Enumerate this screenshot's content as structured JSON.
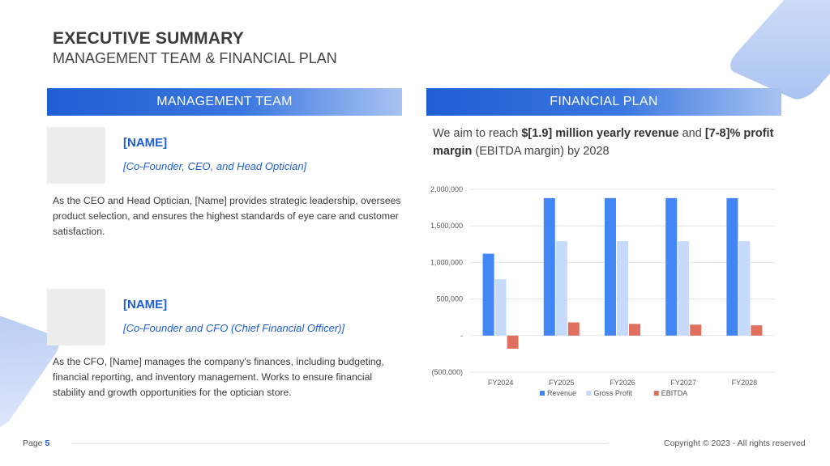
{
  "header": {
    "title": "EXECUTIVE SUMMARY",
    "subtitle": "MANAGEMENT TEAM & FINANCIAL PLAN"
  },
  "management": {
    "heading": "MANAGEMENT TEAM",
    "members": [
      {
        "name": "[NAME]",
        "role": "[Co-Founder, CEO, and Head Optician]",
        "description": "As the CEO and Head Optician, [Name] provides strategic leadership, oversees product selection, and ensures the highest standards of eye care and customer satisfaction."
      },
      {
        "name": "[NAME]",
        "role": "[Co-Founder and CFO (Chief Financial Officer)]",
        "description": "As the CFO, [Name] manages the company's finances, including budgeting, financial reporting, and inventory management. Works to ensure financial stability and growth opportunities for the optician store."
      }
    ]
  },
  "financial": {
    "heading": "FINANCIAL PLAN",
    "text_parts": [
      "We aim to reach ",
      "$[1.9] million yearly revenue",
      " and ",
      "[7-8]% profit margin",
      " (EBITDA margin) by 2028"
    ]
  },
  "chart_data": {
    "type": "bar",
    "categories": [
      "FY2024",
      "FY2025",
      "FY2026",
      "FY2027",
      "FY2028"
    ],
    "series": [
      {
        "name": "Revenue",
        "color": "#4285f4",
        "values": [
          1120000,
          1880000,
          1880000,
          1880000,
          1880000
        ]
      },
      {
        "name": "Gross Profit",
        "color": "#c6dafc",
        "values": [
          770000,
          1290000,
          1290000,
          1290000,
          1290000
        ]
      },
      {
        "name": "EBITDA",
        "color": "#e06f5e",
        "values": [
          -180000,
          180000,
          160000,
          150000,
          140000
        ]
      }
    ],
    "ylim": [
      -500000,
      2000000
    ],
    "yticks": [
      -500000,
      0,
      500000,
      1000000,
      1500000,
      2000000
    ],
    "ytick_labels": [
      "(500,000)",
      "-",
      "500,000",
      "1,000,000",
      "1,500,000",
      "2,000,000"
    ],
    "grid": true,
    "legend_position": "bottom"
  },
  "footer": {
    "page_label": "Page",
    "page_number": "5",
    "copyright": "Copyright © 2023 - All rights reserved"
  }
}
